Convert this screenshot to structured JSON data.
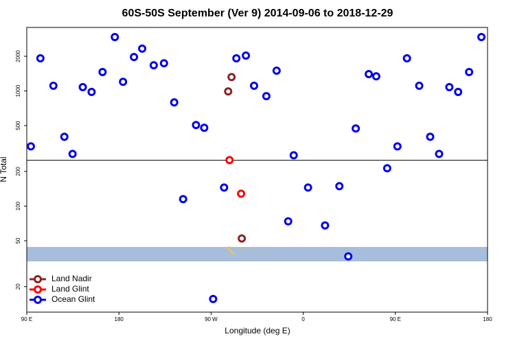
{
  "chart_data": {
    "type": "scatter",
    "title": "60S-50S September (Ver 9)   2014-09-06 to 2018-12-29",
    "x_label": "Longitude (deg E)",
    "y_label": "N Total",
    "xlim": [
      90,
      540
    ],
    "ylim": [
      12,
      3560
    ],
    "log_y": true,
    "xticks": [
      {
        "value": 90,
        "label": "90 E"
      },
      {
        "value": 180,
        "label": "180"
      },
      {
        "value": 270,
        "label": "90 W"
      },
      {
        "value": 360,
        "label": "0"
      },
      {
        "value": 450,
        "label": "90 E"
      },
      {
        "value": 540,
        "label": "180"
      }
    ],
    "yticks": [
      20,
      50,
      100,
      200,
      500,
      1000,
      2000
    ],
    "hline": 250,
    "legend": "bottom-left",
    "series": [
      {
        "name": "Land Nadir",
        "color": "#8b2323",
        "x": [
          290,
          286.7,
          300
        ],
        "values": [
          1320,
          990,
          52.3
        ]
      },
      {
        "name": "Land Glint",
        "color": "#ff0000",
        "x": [
          288,
          299.3
        ],
        "values": [
          251,
          128
        ]
      },
      {
        "name": "Ocean Glint",
        "color": "#0000ee",
        "x": [
          94,
          103.3,
          116,
          126.7,
          134.7,
          144.7,
          153.3,
          164,
          176,
          184,
          194.7,
          202.7,
          214,
          224,
          234,
          242.7,
          255.3,
          263.3,
          272,
          282.7,
          294.7,
          304,
          312,
          324,
          334,
          345.3,
          350.7,
          364.7,
          381.3,
          395.3,
          404,
          411.3,
          424,
          431.3,
          442,
          452,
          461.3,
          473.3,
          484,
          492.7,
          502.7,
          511.3,
          522,
          534
        ],
        "values": [
          330,
          1920,
          1110,
          400,
          284,
          1080,
          980,
          1460,
          2940,
          1200,
          1970,
          2330,
          1670,
          1740,
          796,
          115,
          506,
          479,
          15.6,
          145,
          1920,
          2030,
          1110,
          902,
          1500,
          73.8,
          276,
          145,
          67.9,
          149,
          36.6,
          472,
          1400,
          1340,
          213,
          330,
          1920,
          1110,
          400,
          284,
          1080,
          980,
          1460,
          2940
        ]
      }
    ]
  }
}
